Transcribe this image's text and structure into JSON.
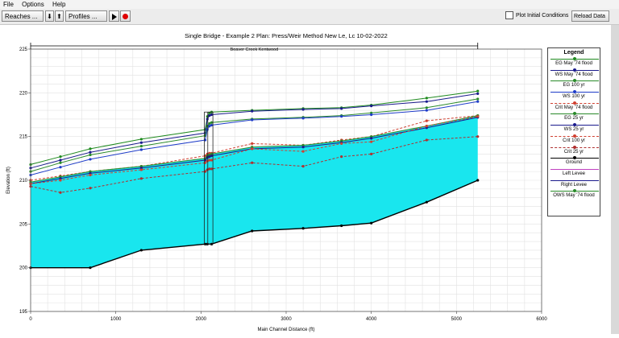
{
  "menu": {
    "file": "File",
    "options": "Options",
    "help": "Help"
  },
  "toolbar": {
    "reaches": "Reaches ...",
    "profiles": "Profiles ...",
    "plot_initial": "Plot Initial Conditions",
    "reload": "Reload Data"
  },
  "chart_data": {
    "type": "line",
    "title": "Single Bridge - Example 2     Plan: Press/Weir Method   New Le, Lc     10-02-2022",
    "reach_label": "Beaver Creek Kentwood",
    "xlabel": "Main Channel Distance (ft)",
    "ylabel": "Elevation (ft)",
    "xlim": [
      0,
      6000
    ],
    "ylim": [
      195,
      225
    ],
    "xticks": [
      0,
      1000,
      2000,
      3000,
      4000,
      5000,
      6000
    ],
    "yticks": [
      195,
      200,
      205,
      210,
      215,
      220,
      225
    ],
    "grid": true,
    "reach_extent": [
      0,
      5250
    ],
    "series": [
      {
        "name": "EG  May '74 flood",
        "color": "#1f8a1f",
        "dash": "",
        "marker": "dot",
        "x": [
          0,
          350,
          700,
          1300,
          2050,
          2075,
          2100,
          2125,
          2600,
          3200,
          3650,
          4000,
          4650,
          5250
        ],
        "y": [
          211.8,
          212.7,
          213.6,
          214.7,
          215.8,
          217.3,
          217.7,
          217.8,
          218.0,
          218.2,
          218.3,
          218.6,
          219.4,
          220.2
        ]
      },
      {
        "name": "WS  May '74 flood",
        "color": "#1a1a8c",
        "dash": "",
        "marker": "dot",
        "x": [
          0,
          350,
          700,
          1300,
          2050,
          2075,
          2100,
          2125,
          2600,
          3200,
          3650,
          4000,
          4650,
          5250
        ],
        "y": [
          211.4,
          212.3,
          213.2,
          214.3,
          215.4,
          217.0,
          217.4,
          217.5,
          217.9,
          218.1,
          218.2,
          218.5,
          219.0,
          219.9
        ]
      },
      {
        "name": "EG  100 yr",
        "color": "#2a8a2a",
        "dash": "",
        "marker": "dot",
        "x": [
          0,
          350,
          700,
          1300,
          2050,
          2075,
          2100,
          2125,
          2600,
          3200,
          3650,
          4000,
          4650,
          5250
        ],
        "y": [
          211.0,
          212.0,
          212.9,
          213.9,
          215.1,
          216.2,
          216.5,
          216.6,
          217.0,
          217.2,
          217.4,
          217.7,
          218.3,
          219.3
        ]
      },
      {
        "name": "WS  100 yr",
        "color": "#1e3cc8",
        "dash": "",
        "marker": "dot",
        "x": [
          0,
          350,
          700,
          1300,
          2050,
          2075,
          2100,
          2125,
          2600,
          3200,
          3650,
          4000,
          4650,
          5250
        ],
        "y": [
          210.6,
          211.5,
          212.4,
          213.5,
          214.6,
          215.8,
          216.2,
          216.3,
          216.9,
          217.1,
          217.3,
          217.5,
          218.0,
          219.0
        ]
      },
      {
        "name": "Crit  May '74 flood",
        "color": "#d04030",
        "dash": "3,2",
        "marker": "dot",
        "x": [
          0,
          350,
          700,
          1300,
          2050,
          2075,
          2100,
          2125,
          2600,
          3200,
          3650,
          4000,
          4650,
          5250
        ],
        "y": [
          210.0,
          210.5,
          211.0,
          211.6,
          212.8,
          213.0,
          213.1,
          213.1,
          214.2,
          214.0,
          214.6,
          215.0,
          216.8,
          217.4
        ]
      },
      {
        "name": "EG  25 yr",
        "color": "#2a8a2a",
        "dash": "",
        "marker": "dot",
        "x": [
          0,
          350,
          700,
          1300,
          2050,
          2075,
          2100,
          2125,
          2600,
          3200,
          3650,
          4000,
          4650,
          5250
        ],
        "y": [
          209.8,
          210.4,
          211.0,
          211.6,
          212.5,
          212.8,
          212.9,
          213.0,
          213.8,
          214.0,
          214.5,
          215.0,
          216.2,
          217.4
        ]
      },
      {
        "name": "WS  25 yr",
        "color": "#1a1a8c",
        "dash": "",
        "marker": "dot",
        "x": [
          0,
          350,
          700,
          1300,
          2050,
          2075,
          2100,
          2125,
          2600,
          3200,
          3650,
          4000,
          4650,
          5250
        ],
        "y": [
          209.6,
          210.2,
          210.8,
          211.4,
          212.3,
          212.6,
          212.7,
          212.8,
          213.6,
          213.8,
          214.3,
          214.8,
          216.0,
          217.2
        ]
      },
      {
        "name": "Crit  100 yr",
        "color": "#d04030",
        "dash": "3,2",
        "marker": "dot",
        "x": [
          0,
          350,
          700,
          1300,
          2050,
          2075,
          2100,
          2125,
          2600,
          3200,
          3650,
          4000,
          4650,
          5250
        ],
        "y": [
          209.6,
          210.0,
          210.6,
          211.2,
          212.0,
          212.2,
          212.3,
          212.3,
          213.6,
          213.3,
          214.2,
          214.4,
          216.2,
          217.3
        ]
      },
      {
        "name": "Crit  25 yr",
        "color": "#b03030",
        "dash": "3,2",
        "marker": "dot",
        "x": [
          0,
          350,
          700,
          1300,
          2050,
          2075,
          2100,
          2125,
          2600,
          3200,
          3650,
          4000,
          4650,
          5250
        ],
        "y": [
          209.3,
          208.6,
          209.1,
          210.2,
          211.0,
          211.2,
          211.3,
          211.3,
          212.0,
          211.6,
          212.7,
          213.0,
          214.6,
          215.0
        ]
      },
      {
        "name": "Ground",
        "color": "#000000",
        "dash": "",
        "marker": "dot",
        "x": [
          0,
          700,
          1300,
          2050,
          2075,
          2125,
          2600,
          3200,
          3650,
          4000,
          4650,
          5250
        ],
        "y": [
          200.0,
          200.0,
          202.0,
          202.7,
          202.7,
          202.7,
          204.2,
          204.5,
          204.8,
          205.1,
          207.5,
          210.0
        ]
      },
      {
        "name": "Left Levee",
        "color": "#c040c0",
        "dash": "",
        "marker": "none",
        "x": [],
        "y": []
      },
      {
        "name": "Right Levee",
        "color": "#1a1a8c",
        "dash": "",
        "marker": "none",
        "x": [],
        "y": []
      },
      {
        "name": "OWS  May '74 flood",
        "color": "#2a8a2a",
        "dash": "",
        "marker": "dot",
        "x": [],
        "y": []
      }
    ],
    "water_fill_color": "#19e6ee",
    "bridge": {
      "x_left": 2040,
      "x_right": 2140,
      "low_chord": 216.5,
      "top": 217.8
    }
  },
  "legend_title": "Legend"
}
